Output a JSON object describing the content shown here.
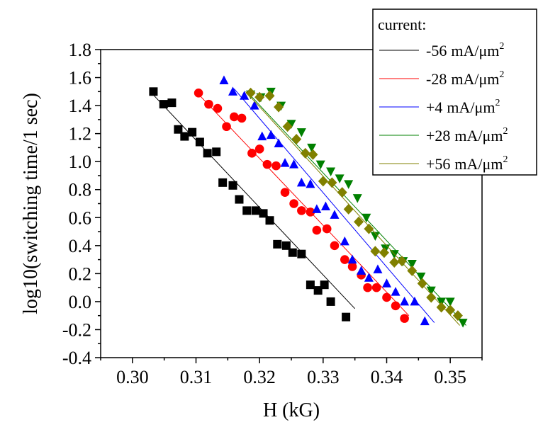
{
  "chart_data": {
    "type": "scatter",
    "xlabel": "H (kG)",
    "ylabel": "log10(switching time/1 sec)",
    "xlim": [
      0.295,
      0.355
    ],
    "ylim": [
      -0.4,
      1.8
    ],
    "x_ticks": [
      "0.30",
      "0.31",
      "0.32",
      "0.33",
      "0.34",
      "0.35"
    ],
    "y_ticks": [
      "-0.4",
      "-0.2",
      "0.0",
      "0.2",
      "0.4",
      "0.6",
      "0.8",
      "1.0",
      "1.2",
      "1.4",
      "1.6",
      "1.8"
    ],
    "grid": false,
    "legend": {
      "title": "current:",
      "position": "top-right",
      "entries": [
        {
          "value": "-56",
          "unit": "mA/μm",
          "sup": "2"
        },
        {
          "value": "-28",
          "unit": "mA/μm",
          "sup": "2"
        },
        {
          "value": "+4",
          "unit": "mA/μm",
          "sup": "2"
        },
        {
          "value": "+28",
          "unit": "mA/μm",
          "sup": "2"
        },
        {
          "value": "+56",
          "unit": "mA/μm",
          "sup": "2"
        }
      ]
    },
    "series": [
      {
        "marker": "square",
        "color": "#000000",
        "points": [
          [
            0.3033,
            1.5
          ],
          [
            0.3049,
            1.41
          ],
          [
            0.3062,
            1.42
          ],
          [
            0.3072,
            1.23
          ],
          [
            0.3082,
            1.18
          ],
          [
            0.3094,
            1.21
          ],
          [
            0.3106,
            1.14
          ],
          [
            0.3118,
            1.06
          ],
          [
            0.3132,
            1.07
          ],
          [
            0.3142,
            0.85
          ],
          [
            0.3158,
            0.83
          ],
          [
            0.3168,
            0.73
          ],
          [
            0.318,
            0.65
          ],
          [
            0.3194,
            0.65
          ],
          [
            0.3206,
            0.63
          ],
          [
            0.3216,
            0.58
          ],
          [
            0.3228,
            0.41
          ],
          [
            0.3242,
            0.4
          ],
          [
            0.3252,
            0.35
          ],
          [
            0.3266,
            0.34
          ],
          [
            0.328,
            0.12
          ],
          [
            0.3292,
            0.08
          ],
          [
            0.3302,
            0.12
          ],
          [
            0.3312,
            0.0
          ],
          [
            0.3336,
            -0.11
          ]
        ],
        "fit": [
          [
            0.3028,
            1.5
          ],
          [
            0.335,
            -0.05
          ]
        ]
      },
      {
        "marker": "circle",
        "color": "#ff0000",
        "points": [
          [
            0.3104,
            1.49
          ],
          [
            0.312,
            1.41
          ],
          [
            0.3134,
            1.38
          ],
          [
            0.3148,
            1.25
          ],
          [
            0.316,
            1.32
          ],
          [
            0.3172,
            1.31
          ],
          [
            0.3188,
            1.06
          ],
          [
            0.32,
            1.09
          ],
          [
            0.3212,
            0.98
          ],
          [
            0.3226,
            0.97
          ],
          [
            0.324,
            0.78
          ],
          [
            0.3254,
            0.7
          ],
          [
            0.3266,
            0.65
          ],
          [
            0.328,
            0.64
          ],
          [
            0.329,
            0.51
          ],
          [
            0.3306,
            0.52
          ],
          [
            0.3318,
            0.4
          ],
          [
            0.3334,
            0.3
          ],
          [
            0.3346,
            0.25
          ],
          [
            0.336,
            0.19
          ],
          [
            0.337,
            0.1
          ],
          [
            0.3384,
            0.1
          ],
          [
            0.34,
            0.03
          ],
          [
            0.3414,
            -0.03
          ],
          [
            0.3428,
            -0.12
          ]
        ],
        "fit": [
          [
            0.31,
            1.5
          ],
          [
            0.3435,
            -0.1
          ]
        ]
      },
      {
        "marker": "triangle-up",
        "color": "#0000ff",
        "points": [
          [
            0.3144,
            1.58
          ],
          [
            0.3158,
            1.5
          ],
          [
            0.3176,
            1.47
          ],
          [
            0.3192,
            1.4
          ],
          [
            0.3204,
            1.18
          ],
          [
            0.3218,
            1.19
          ],
          [
            0.323,
            1.13
          ],
          [
            0.324,
            0.99
          ],
          [
            0.3254,
            0.98
          ],
          [
            0.3266,
            0.85
          ],
          [
            0.328,
            0.84
          ],
          [
            0.329,
            0.66
          ],
          [
            0.3304,
            0.68
          ],
          [
            0.3318,
            0.62
          ],
          [
            0.3334,
            0.43
          ],
          [
            0.3346,
            0.3
          ],
          [
            0.336,
            0.22
          ],
          [
            0.3372,
            0.17
          ],
          [
            0.3386,
            0.23
          ],
          [
            0.34,
            0.13
          ],
          [
            0.3414,
            0.07
          ],
          [
            0.3428,
            0.0
          ],
          [
            0.3444,
            0.0
          ],
          [
            0.346,
            -0.14
          ]
        ],
        "fit": [
          [
            0.316,
            1.52
          ],
          [
            0.3475,
            -0.15
          ]
        ]
      },
      {
        "marker": "triangle-down",
        "color": "#008000",
        "points": [
          [
            0.3186,
            1.48
          ],
          [
            0.3202,
            1.46
          ],
          [
            0.3218,
            1.5
          ],
          [
            0.3234,
            1.4
          ],
          [
            0.325,
            1.27
          ],
          [
            0.3266,
            1.21
          ],
          [
            0.3282,
            1.1
          ],
          [
            0.3296,
            0.98
          ],
          [
            0.3312,
            0.93
          ],
          [
            0.3326,
            0.88
          ],
          [
            0.334,
            0.84
          ],
          [
            0.3354,
            0.74
          ],
          [
            0.3368,
            0.6
          ],
          [
            0.3382,
            0.47
          ],
          [
            0.3398,
            0.38
          ],
          [
            0.3412,
            0.34
          ],
          [
            0.3426,
            0.29
          ],
          [
            0.344,
            0.27
          ],
          [
            0.3454,
            0.18
          ],
          [
            0.347,
            0.08
          ],
          [
            0.3486,
            0.0
          ],
          [
            0.35,
            0.0
          ],
          [
            0.352,
            -0.15
          ]
        ],
        "fit": [
          [
            0.318,
            1.5
          ],
          [
            0.3525,
            -0.17
          ]
        ]
      },
      {
        "marker": "diamond",
        "color": "#808000",
        "points": [
          [
            0.3186,
            1.49
          ],
          [
            0.32,
            1.46
          ],
          [
            0.3216,
            1.47
          ],
          [
            0.323,
            1.39
          ],
          [
            0.3244,
            1.25
          ],
          [
            0.3258,
            1.16
          ],
          [
            0.3272,
            1.06
          ],
          [
            0.3284,
            1.05
          ],
          [
            0.33,
            0.86
          ],
          [
            0.3314,
            0.85
          ],
          [
            0.333,
            0.78
          ],
          [
            0.334,
            0.66
          ],
          [
            0.3356,
            0.57
          ],
          [
            0.3372,
            0.52
          ],
          [
            0.3382,
            0.36
          ],
          [
            0.3396,
            0.35
          ],
          [
            0.3412,
            0.28
          ],
          [
            0.3424,
            0.29
          ],
          [
            0.344,
            0.22
          ],
          [
            0.3456,
            0.13
          ],
          [
            0.347,
            0.03
          ],
          [
            0.3486,
            -0.04
          ],
          [
            0.35,
            -0.06
          ],
          [
            0.3512,
            -0.1
          ]
        ],
        "fit": [
          [
            0.3178,
            1.5
          ],
          [
            0.3515,
            -0.17
          ]
        ]
      }
    ]
  }
}
